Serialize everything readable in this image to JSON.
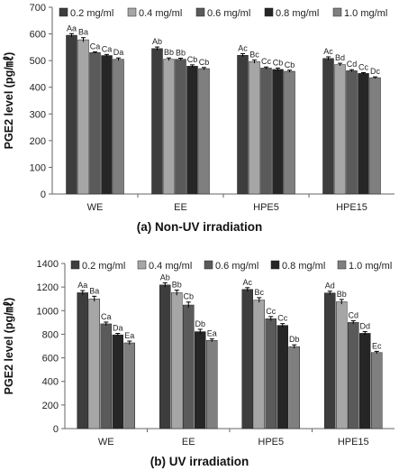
{
  "chart_data": [
    {
      "type": "bar",
      "panel_caption": "(a) Non-UV irradiation",
      "ylabel": "PGE2 level (pg/㎖)",
      "xlabel": "",
      "ylim": [
        0,
        700
      ],
      "yticks": [
        0,
        100,
        200,
        300,
        400,
        500,
        600,
        700
      ],
      "categories": [
        "WE",
        "EE",
        "HPE5",
        "HPE15"
      ],
      "legend_position": "top",
      "grid": false,
      "series": [
        {
          "name": "0.2 mg/ml",
          "color": "#3d3d3d",
          "values": [
            595,
            545,
            520,
            508
          ],
          "errors": [
            6,
            6,
            6,
            6
          ],
          "labels": [
            "Aa",
            "Ab",
            "Ac",
            "Ac"
          ]
        },
        {
          "name": "0.4 mg/ml",
          "color": "#a6a6a6",
          "values": [
            578,
            505,
            496,
            485
          ],
          "errors": [
            8,
            5,
            6,
            5
          ],
          "labels": [
            "Ba",
            "Bb",
            "Bc",
            "Bd"
          ]
        },
        {
          "name": "0.6 mg/ml",
          "color": "#5a5a5a",
          "values": [
            530,
            505,
            472,
            462
          ],
          "errors": [
            3,
            4,
            4,
            4
          ],
          "labels": [
            "Ca",
            "Bb",
            "Cc",
            "Cd"
          ]
        },
        {
          "name": "0.8 mg/ml",
          "color": "#262626",
          "values": [
            519,
            479,
            467,
            452
          ],
          "errors": [
            4,
            5,
            5,
            3
          ],
          "labels": [
            "Ca",
            "Cb",
            "Cb",
            "Cc"
          ]
        },
        {
          "name": "1.0 mg/ml",
          "color": "#7f7f7f",
          "values": [
            505,
            470,
            460,
            436
          ],
          "errors": [
            5,
            4,
            4,
            3
          ],
          "labels": [
            "Da",
            "Cb",
            "Cb",
            "Dc"
          ]
        }
      ]
    },
    {
      "type": "bar",
      "panel_caption": "(b) UV irradiation",
      "ylabel": "PGE2 level (pg/㎖)",
      "xlabel": "",
      "ylim": [
        0,
        1400
      ],
      "yticks": [
        0,
        200,
        400,
        600,
        800,
        1000,
        1200,
        1400
      ],
      "categories": [
        "WE",
        "EE",
        "HPE5",
        "HPE15"
      ],
      "legend_position": "top",
      "grid": false,
      "series": [
        {
          "name": "0.2 mg/ml",
          "color": "#3d3d3d",
          "values": [
            1152,
            1218,
            1180,
            1150
          ],
          "errors": [
            18,
            18,
            15,
            15
          ],
          "labels": [
            "Aa",
            "Ab",
            "Ac",
            "Ad"
          ]
        },
        {
          "name": "0.4 mg/ml",
          "color": "#a6a6a6",
          "values": [
            1100,
            1152,
            1090,
            1075
          ],
          "errors": [
            22,
            22,
            20,
            20
          ],
          "labels": [
            "Ba",
            "Bb",
            "Bc",
            "Bb"
          ]
        },
        {
          "name": "0.6 mg/ml",
          "color": "#5a5a5a",
          "values": [
            888,
            1048,
            932,
            900
          ],
          "errors": [
            15,
            25,
            18,
            14
          ],
          "labels": [
            "Ca",
            "Cb",
            "Cc",
            "Cd"
          ]
        },
        {
          "name": "0.8 mg/ml",
          "color": "#262626",
          "values": [
            795,
            822,
            875,
            808
          ],
          "errors": [
            12,
            20,
            15,
            14
          ],
          "labels": [
            "Da",
            "Db",
            "Cc",
            "Dd"
          ]
        },
        {
          "name": "1.0 mg/ml",
          "color": "#7f7f7f",
          "values": [
            727,
            748,
            695,
            645
          ],
          "errors": [
            15,
            12,
            15,
            10
          ],
          "labels": [
            "Ea",
            "Ea",
            "Db",
            "Ec"
          ]
        }
      ]
    }
  ]
}
